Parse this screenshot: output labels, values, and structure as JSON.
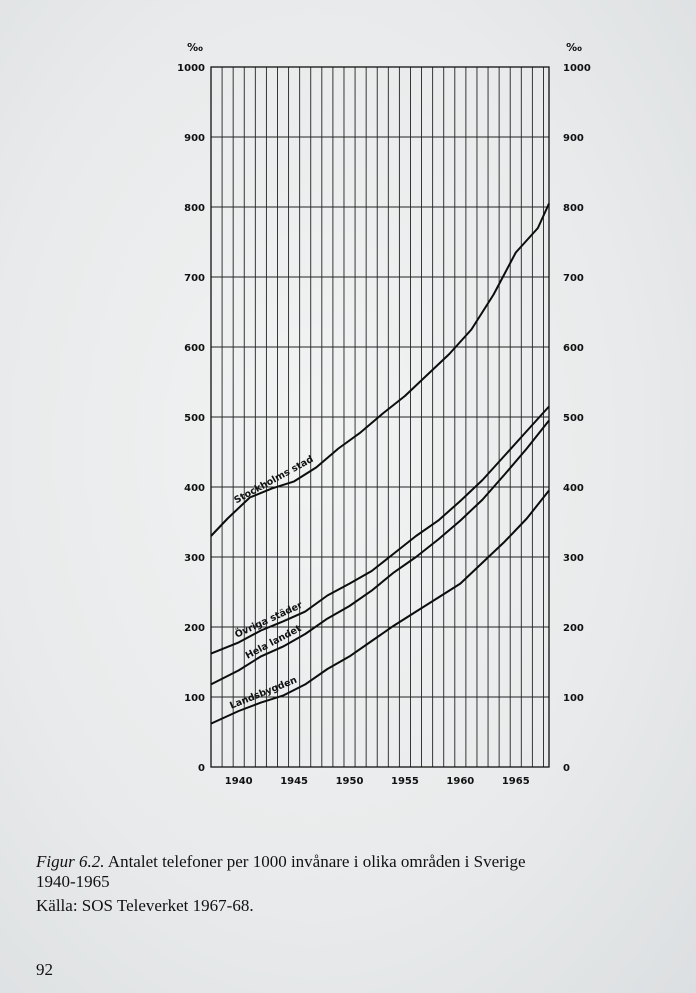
{
  "chart_data": {
    "type": "line",
    "unit_left": "‰",
    "unit_right": "‰",
    "y_ticks": [
      0,
      100,
      200,
      300,
      400,
      500,
      600,
      700,
      800,
      900,
      1000
    ],
    "ylim": [
      0,
      1000
    ],
    "x_ticks": [
      1940,
      1945,
      1950,
      1955,
      1960,
      1965
    ],
    "xlim": [
      1937.5,
      1968
    ],
    "grid": true,
    "series": [
      {
        "name": "Stockholms stad",
        "x": [
          1937.5,
          1939,
          1941,
          1943,
          1945,
          1947,
          1949,
          1951,
          1953,
          1955,
          1957,
          1959,
          1961,
          1963,
          1965,
          1967,
          1968
        ],
        "values": [
          330,
          355,
          385,
          398,
          408,
          428,
          455,
          478,
          505,
          530,
          560,
          590,
          625,
          675,
          735,
          770,
          805
        ]
      },
      {
        "name": "Övriga städer",
        "x": [
          1937.5,
          1940,
          1942,
          1944,
          1946,
          1948,
          1950,
          1952,
          1954,
          1956,
          1958,
          1960,
          1962,
          1964,
          1966,
          1968
        ],
        "values": [
          162,
          178,
          195,
          208,
          222,
          245,
          262,
          280,
          305,
          330,
          352,
          380,
          410,
          445,
          480,
          515
        ]
      },
      {
        "name": "Hela landet",
        "x": [
          1937.5,
          1940,
          1942,
          1944,
          1946,
          1948,
          1950,
          1952,
          1954,
          1956,
          1958,
          1960,
          1962,
          1964,
          1966,
          1968
        ],
        "values": [
          118,
          138,
          158,
          172,
          190,
          212,
          230,
          252,
          278,
          300,
          325,
          352,
          382,
          418,
          455,
          495
        ]
      },
      {
        "name": "Landsbygden",
        "x": [
          1937.5,
          1940,
          1942,
          1944,
          1946,
          1948,
          1950,
          1952,
          1954,
          1956,
          1958,
          1960,
          1962,
          1964,
          1966,
          1968
        ],
        "values": [
          62,
          80,
          92,
          102,
          118,
          140,
          158,
          180,
          202,
          222,
          242,
          262,
          292,
          322,
          355,
          395
        ]
      }
    ]
  },
  "caption": {
    "figure_label": "Figur 6.2.",
    "text_line1": "Antalet telefoner per 1000 invånare i olika områden i Sverige",
    "text_line2": "1940-1965",
    "source": "Källa: SOS Televerket 1967-68."
  },
  "page_number": "92"
}
